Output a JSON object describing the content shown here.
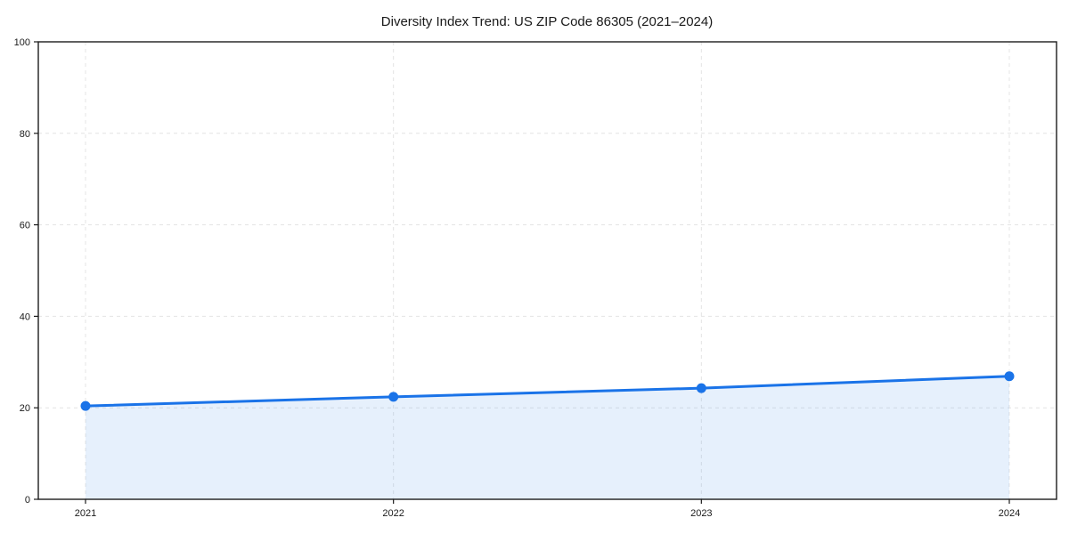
{
  "figure": {
    "background": "#ffffff"
  },
  "chart_data": {
    "type": "line",
    "title": "Diversity Index Trend: US ZIP Code 86305 (2021–2024)",
    "x": [
      2021,
      2022,
      2023,
      2024
    ],
    "values": [
      20.4,
      22.4,
      24.3,
      26.9
    ],
    "xlabel": "",
    "ylabel": "",
    "ylim": [
      0,
      100
    ],
    "yticks": [
      0,
      20,
      40,
      60,
      80,
      100
    ],
    "xtick_labels": [
      "2021",
      "2022",
      "2023",
      "2024"
    ],
    "grid": true,
    "grid_line_style": "dashed",
    "legend_position": "none",
    "area_under_line": true,
    "marker": "circle",
    "colors": {
      "line": "#1a73e8",
      "marker": "#1a73e8",
      "area_fill": "rgba(26,115,232,0.11)",
      "grid": "#e4e4e4",
      "spine": "#1c1c1c",
      "tick_label": "#1a1a1a",
      "title_text": "#111111",
      "background": "#ffffff"
    }
  }
}
